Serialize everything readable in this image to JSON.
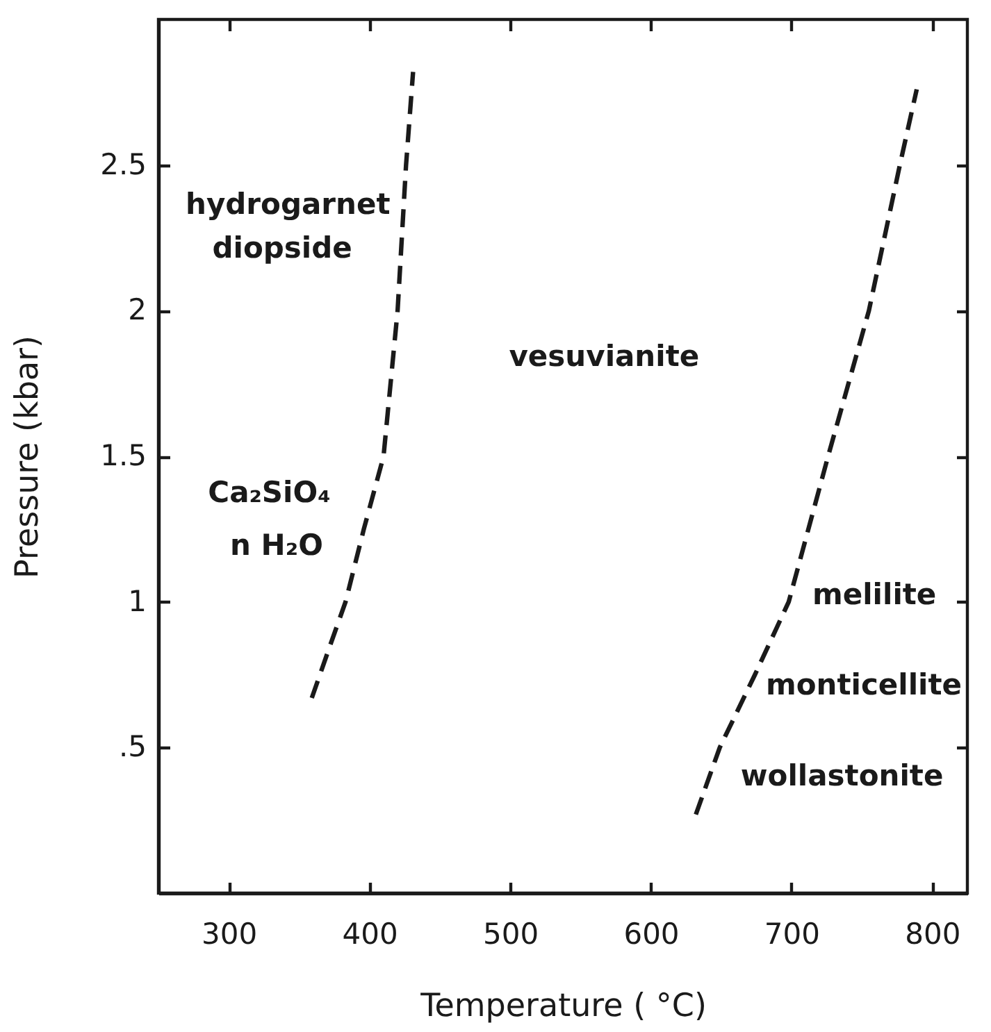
{
  "chart_data": {
    "type": "line",
    "xlabel": "Temperature ( °C)",
    "ylabel": "Pressure (kbar)",
    "xlim": [
      250,
      825
    ],
    "ylim": [
      0,
      3
    ],
    "xticks": [
      300,
      400,
      500,
      600,
      700,
      800
    ],
    "yticks": [
      {
        "value": 0.5,
        "label": ".5"
      },
      1,
      1.5,
      2,
      2.5
    ],
    "grid": false,
    "line_style": "dashed",
    "series": [
      {
        "color": "#1a1a1a",
        "x": [
          359,
          372,
          383,
          396,
          410,
          420,
          426,
          431
        ],
        "values": [
          0.67,
          0.85,
          1.0,
          1.25,
          1.5,
          2.0,
          2.5,
          2.82
        ]
      },
      {
        "color": "#1a1a1a",
        "x": [
          632,
          649,
          674,
          698,
          726,
          755,
          777,
          789
        ],
        "values": [
          0.27,
          0.5,
          0.75,
          1.0,
          1.5,
          2.0,
          2.5,
          2.76
        ]
      }
    ],
    "annotations": [
      "hydrogarnet",
      "diopside",
      "vesuvianite",
      "Ca₂SiO₄",
      "n H₂O",
      "melilite",
      "monticellite",
      "wollastonite"
    ]
  }
}
